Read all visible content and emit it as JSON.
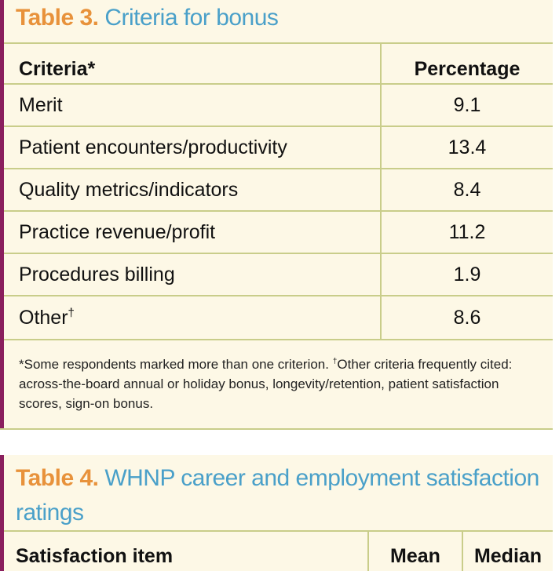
{
  "table3": {
    "label": "Table 3.",
    "title": "Criteria for bonus",
    "headers": {
      "criteria": "Criteria*",
      "percentage": "Percentage"
    },
    "rows": [
      {
        "criteria": "Merit",
        "mark": "",
        "percentage": "9.1"
      },
      {
        "criteria": "Patient encounters/productivity",
        "mark": "",
        "percentage": "13.4"
      },
      {
        "criteria": "Quality metrics/indicators",
        "mark": "",
        "percentage": "8.4"
      },
      {
        "criteria": "Practice revenue/profit",
        "mark": "",
        "percentage": "11.2"
      },
      {
        "criteria": "Procedures billing",
        "mark": "",
        "percentage": "1.9"
      },
      {
        "criteria": "Other",
        "mark": "†",
        "percentage": "8.6"
      }
    ],
    "footnote_a": "*Some respondents marked more than one criterion.",
    "footnote_dagger": "†",
    "footnote_b": "Other criteria frequently cited: across-the-board annual or holiday bonus, longevity/retention, patient satisfaction scores, sign-on bonus."
  },
  "table4": {
    "label": "Table 4.",
    "title": "WHNP career and employment satisfaction ratings",
    "headers": {
      "item": "Satisfaction item",
      "mean": "Mean",
      "median": "Median"
    }
  },
  "colors": {
    "background": "#fdf8e6",
    "accent_bar": "#8a1f5e",
    "label_orange": "#e8923b",
    "title_blue": "#4aa0c9",
    "rule": "#c9cd8a"
  }
}
